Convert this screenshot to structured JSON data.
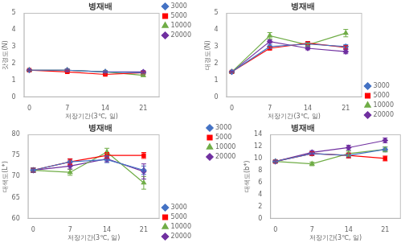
{
  "chart_data": [
    {
      "type": "line",
      "title": "병재배",
      "xlabel": "저장기간(3℃, 일)",
      "ylabel": "갓경도(N)",
      "x": [
        0,
        7,
        14,
        21
      ],
      "xlim": [
        -1,
        24
      ],
      "xticks": [
        0,
        7,
        14,
        21
      ],
      "ylim": [
        0,
        5
      ],
      "yticks": [
        0,
        1,
        2,
        3,
        4,
        5
      ],
      "grid": false,
      "legend": "upper right",
      "series": [
        {
          "name": "3000",
          "color": "#4472c4",
          "marker": "diamond",
          "values": [
            1.6,
            1.6,
            1.5,
            1.45
          ],
          "errors": [
            0.04,
            0.07,
            0.06,
            0.08
          ]
        },
        {
          "name": "5000",
          "color": "#ff0000",
          "marker": "square",
          "values": [
            1.6,
            1.5,
            1.35,
            1.45
          ],
          "errors": [
            0.04,
            0.07,
            0.06,
            0.07
          ]
        },
        {
          "name": "10000",
          "color": "#70ad47",
          "marker": "triangle",
          "values": [
            1.6,
            1.6,
            1.5,
            1.3
          ],
          "errors": [
            0.04,
            0.06,
            0.06,
            0.07
          ]
        },
        {
          "name": "20000",
          "color": "#7030a0",
          "marker": "diamond",
          "values": [
            1.6,
            1.6,
            1.5,
            1.5
          ],
          "errors": [
            0.04,
            0.06,
            0.05,
            0.07
          ]
        }
      ]
    },
    {
      "type": "line",
      "title": "병재배",
      "xlabel": "저장기간(3℃, 일)",
      "ylabel": "대경도(N)",
      "x": [
        0,
        7,
        14,
        21
      ],
      "xlim": [
        -1,
        24
      ],
      "xticks": [
        0,
        7,
        14,
        21
      ],
      "ylim": [
        0,
        5
      ],
      "yticks": [
        0,
        1,
        2,
        3,
        4,
        5
      ],
      "grid": false,
      "legend": "lower right",
      "series": [
        {
          "name": "3000",
          "color": "#4472c4",
          "marker": "diamond",
          "values": [
            1.5,
            3.0,
            3.15,
            3.0
          ],
          "errors": [
            0.04,
            0.1,
            0.1,
            0.12
          ]
        },
        {
          "name": "5000",
          "color": "#ff0000",
          "marker": "square",
          "values": [
            1.5,
            2.9,
            3.2,
            2.95
          ],
          "errors": [
            0.04,
            0.09,
            0.09,
            0.1
          ]
        },
        {
          "name": "10000",
          "color": "#70ad47",
          "marker": "triangle",
          "values": [
            1.5,
            3.65,
            3.1,
            3.8
          ],
          "errors": [
            0.04,
            0.18,
            0.1,
            0.22
          ]
        },
        {
          "name": "20000",
          "color": "#7030a0",
          "marker": "diamond",
          "values": [
            1.5,
            3.3,
            2.9,
            2.7
          ],
          "errors": [
            0.04,
            0.1,
            0.09,
            0.12
          ]
        }
      ]
    },
    {
      "type": "line",
      "title": "병재배",
      "xlabel": "저장기간(3℃, 일)",
      "ylabel": "대색도(L*)",
      "x": [
        0,
        7,
        14,
        21
      ],
      "xlim": [
        -1,
        24
      ],
      "xticks": [
        0,
        7,
        14,
        21
      ],
      "ylim": [
        60,
        80
      ],
      "yticks": [
        60,
        65,
        70,
        75,
        80
      ],
      "grid": false,
      "legend": "lower right",
      "series": [
        {
          "name": "3000",
          "color": "#4472c4",
          "marker": "diamond",
          "values": [
            71.5,
            73.5,
            74.0,
            71.5
          ],
          "errors": [
            0.5,
            0.7,
            0.7,
            1.0
          ]
        },
        {
          "name": "5000",
          "color": "#ff0000",
          "marker": "square",
          "values": [
            71.5,
            73.5,
            75.0,
            75.0
          ],
          "errors": [
            0.5,
            0.7,
            0.7,
            0.7
          ]
        },
        {
          "name": "10000",
          "color": "#70ad47",
          "marker": "triangle",
          "values": [
            71.5,
            71.0,
            75.8,
            68.5
          ],
          "errors": [
            0.5,
            0.7,
            0.9,
            1.5
          ]
        },
        {
          "name": "20000",
          "color": "#7030a0",
          "marker": "diamond",
          "values": [
            71.5,
            72.5,
            74.2,
            71.2
          ],
          "errors": [
            0.5,
            0.7,
            0.7,
            1.8
          ]
        }
      ]
    },
    {
      "type": "line",
      "title": "병재배",
      "xlabel": "저장기간(3℃, 일)",
      "ylabel": "대색도(b*)",
      "x": [
        0,
        7,
        14,
        21
      ],
      "xlim": [
        -1,
        24
      ],
      "xticks": [
        0,
        7,
        14,
        21
      ],
      "ylim": [
        0,
        14
      ],
      "yticks": [
        0,
        2,
        4,
        6,
        8,
        10,
        12,
        14
      ],
      "grid": false,
      "legend": "upper left",
      "series": [
        {
          "name": "3000",
          "color": "#4472c4",
          "marker": "diamond",
          "values": [
            9.5,
            10.8,
            10.5,
            11.5
          ],
          "errors": [
            0.2,
            0.3,
            0.4,
            0.4
          ]
        },
        {
          "name": "5000",
          "color": "#ff0000",
          "marker": "square",
          "values": [
            9.5,
            10.8,
            10.5,
            10.0
          ],
          "errors": [
            0.2,
            0.3,
            0.4,
            0.4
          ]
        },
        {
          "name": "10000",
          "color": "#70ad47",
          "marker": "triangle",
          "values": [
            9.5,
            9.1,
            10.8,
            11.5
          ],
          "errors": [
            0.2,
            0.3,
            0.4,
            0.4
          ]
        },
        {
          "name": "20000",
          "color": "#7030a0",
          "marker": "diamond",
          "values": [
            9.5,
            11.0,
            11.8,
            13.0
          ],
          "errors": [
            0.2,
            0.3,
            0.4,
            0.4
          ]
        }
      ]
    }
  ]
}
